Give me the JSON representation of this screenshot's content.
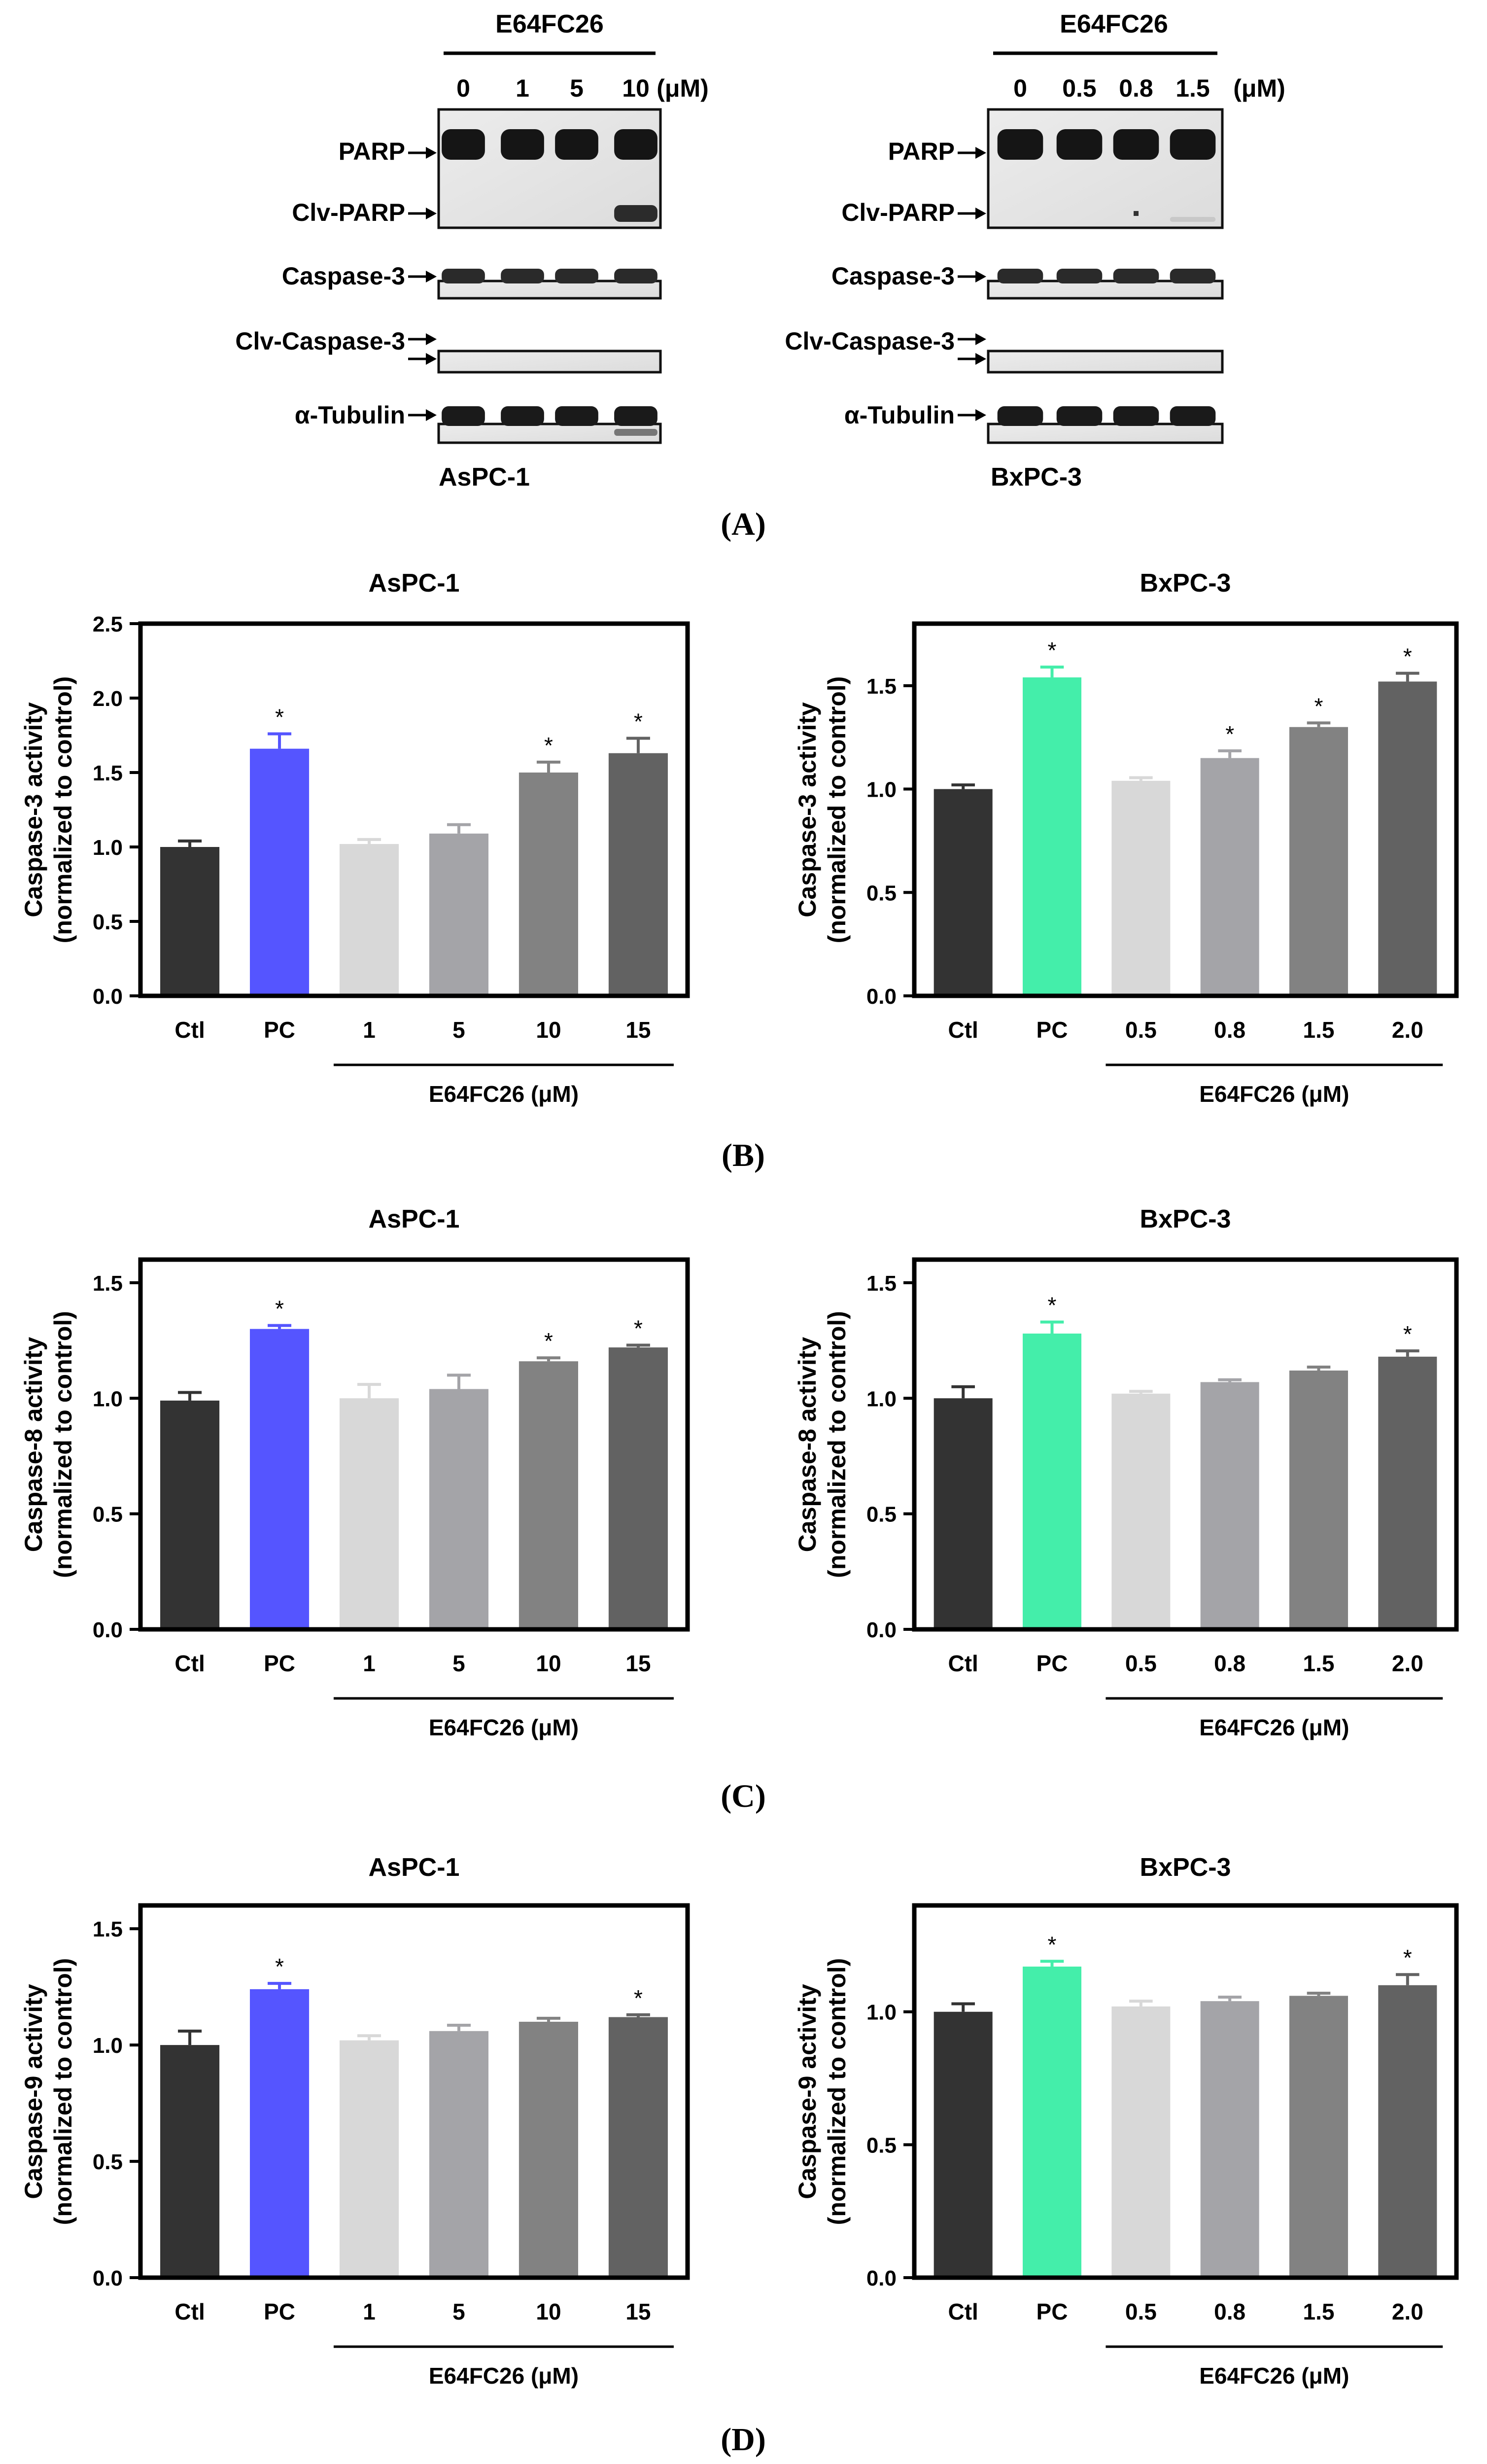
{
  "colors": {
    "ctl": "#333333",
    "pc_aspc": "#5555ff",
    "pc_bxpc": "#44eeaa",
    "dose": [
      "#d8d8d8",
      "#a4a4a8",
      "#828282",
      "#626262"
    ]
  },
  "panel_labels": {
    "a": "(A)",
    "b": "(B)",
    "c": "(C)",
    "d": "(D)"
  },
  "western": [
    {
      "cell_line": "AsPC-1",
      "treatment": "E64FC26",
      "unit": "(μM)",
      "doses": [
        "0",
        "1",
        "5",
        "10"
      ],
      "bands": [
        "PARP",
        "Clv-PARP",
        "Caspase-3",
        "Clv-Caspase-3",
        "α-Tubulin"
      ]
    },
    {
      "cell_line": "BxPC-3",
      "treatment": "E64FC26",
      "unit": "(μM)",
      "doses": [
        "0",
        "0.5",
        "0.8",
        "1.5"
      ],
      "bands": [
        "PARP",
        "Clv-PARP",
        "Caspase-3",
        "Clv-Caspase-3",
        "α-Tubulin"
      ]
    }
  ],
  "chart_data": [
    {
      "panel": "B",
      "type": "bar",
      "title": "AsPC-1",
      "ylabel": [
        "Caspase-3 activity",
        "(normalized to control)"
      ],
      "xlabel": "E64FC26 (μM)",
      "pc_color": "pc_aspc",
      "categories": [
        "Ctl",
        "PC",
        "1",
        "5",
        "10",
        "15"
      ],
      "values": [
        1.0,
        1.66,
        1.02,
        1.09,
        1.5,
        1.63
      ],
      "errors": [
        0.04,
        0.1,
        0.03,
        0.06,
        0.07,
        0.1
      ],
      "significant": [
        false,
        true,
        false,
        false,
        true,
        true
      ],
      "ylim": [
        0,
        2.5
      ],
      "yticks": [
        "0.0",
        "0.5",
        "1.0",
        "1.5",
        "2.0",
        "2.5"
      ]
    },
    {
      "panel": "B",
      "type": "bar",
      "title": "BxPC-3",
      "ylabel": [
        "Caspase-3 activity",
        "(normalized to control)"
      ],
      "xlabel": "E64FC26 (μM)",
      "pc_color": "pc_bxpc",
      "categories": [
        "Ctl",
        "PC",
        "0.5",
        "0.8",
        "1.5",
        "2.0"
      ],
      "values": [
        1.0,
        1.54,
        1.04,
        1.15,
        1.3,
        1.52
      ],
      "errors": [
        0.02,
        0.05,
        0.015,
        0.035,
        0.02,
        0.04
      ],
      "significant": [
        false,
        true,
        false,
        true,
        true,
        true
      ],
      "ylim": [
        0,
        1.8
      ],
      "yticks": [
        "0.0",
        "0.5",
        "1.0",
        "1.5"
      ]
    },
    {
      "panel": "C",
      "type": "bar",
      "title": "AsPC-1",
      "ylabel": [
        "Caspase-8 activity",
        "(normalized to control)"
      ],
      "xlabel": "E64FC26 (μM)",
      "pc_color": "pc_aspc",
      "categories": [
        "Ctl",
        "PC",
        "1",
        "5",
        "10",
        "15"
      ],
      "values": [
        0.99,
        1.3,
        1.0,
        1.04,
        1.16,
        1.22
      ],
      "errors": [
        0.035,
        0.015,
        0.06,
        0.06,
        0.015,
        0.01
      ],
      "significant": [
        false,
        true,
        false,
        false,
        true,
        true
      ],
      "ylim": [
        0,
        1.6
      ],
      "yticks": [
        "0.0",
        "0.5",
        "1.0",
        "1.5"
      ]
    },
    {
      "panel": "C",
      "type": "bar",
      "title": "BxPC-3",
      "ylabel": [
        "Caspase-8 activity",
        "(normalized to control)"
      ],
      "xlabel": "E64FC26 (μM)",
      "pc_color": "pc_bxpc",
      "categories": [
        "Ctl",
        "PC",
        "0.5",
        "0.8",
        "1.5",
        "2.0"
      ],
      "values": [
        1.0,
        1.28,
        1.02,
        1.07,
        1.12,
        1.18
      ],
      "errors": [
        0.05,
        0.05,
        0.01,
        0.01,
        0.015,
        0.025
      ],
      "significant": [
        false,
        true,
        false,
        false,
        false,
        true
      ],
      "ylim": [
        0,
        1.6
      ],
      "yticks": [
        "0.0",
        "0.5",
        "1.0",
        "1.5"
      ]
    },
    {
      "panel": "D",
      "type": "bar",
      "title": "AsPC-1",
      "ylabel": [
        "Caspase-9 activity",
        "(normalized to control)"
      ],
      "xlabel": "E64FC26 (μM)",
      "pc_color": "pc_aspc",
      "categories": [
        "Ctl",
        "PC",
        "1",
        "5",
        "10",
        "15"
      ],
      "values": [
        1.0,
        1.24,
        1.02,
        1.06,
        1.1,
        1.12
      ],
      "errors": [
        0.06,
        0.025,
        0.02,
        0.025,
        0.015,
        0.01
      ],
      "significant": [
        false,
        true,
        false,
        false,
        false,
        true
      ],
      "ylim": [
        0,
        1.6
      ],
      "yticks": [
        "0.0",
        "0.5",
        "1.0",
        "1.5"
      ]
    },
    {
      "panel": "D",
      "type": "bar",
      "title": "BxPC-3",
      "ylabel": [
        "Caspase-9 activity",
        "(normalized to control)"
      ],
      "xlabel": "E64FC26 (μM)",
      "pc_color": "pc_bxpc",
      "categories": [
        "Ctl",
        "PC",
        "0.5",
        "0.8",
        "1.5",
        "2.0"
      ],
      "values": [
        1.0,
        1.17,
        1.02,
        1.04,
        1.06,
        1.1
      ],
      "errors": [
        0.03,
        0.02,
        0.02,
        0.015,
        0.01,
        0.04
      ],
      "significant": [
        false,
        true,
        false,
        false,
        false,
        true
      ],
      "ylim": [
        0,
        1.4
      ],
      "yticks": [
        "0.0",
        "0.5",
        "1.0"
      ]
    }
  ]
}
